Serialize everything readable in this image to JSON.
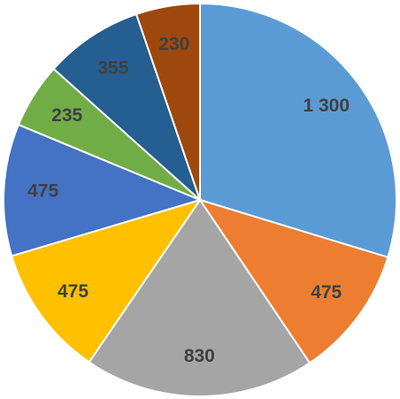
{
  "chart_data": {
    "type": "pie",
    "values": [
      1300,
      475,
      830,
      475,
      475,
      235,
      355,
      230
    ],
    "value_labels": [
      "1 300",
      "475",
      "830",
      "475",
      "475",
      "235",
      "355",
      "230"
    ],
    "colors": [
      "#5b9bd5",
      "#ed7d31",
      "#a5a5a5",
      "#ffc000",
      "#4472c4",
      "#70ad47",
      "#255e91",
      "#9e480e"
    ]
  }
}
